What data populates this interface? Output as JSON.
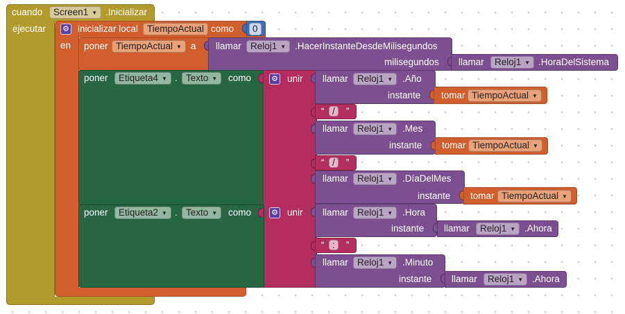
{
  "event": {
    "when": "cuando",
    "component": "Screen1",
    "event_name": ".Inicializar",
    "do": "ejecutar"
  },
  "local": {
    "label": "inicializar local",
    "var_name": "TiempoActual",
    "as": "como",
    "value": "0",
    "in": "en"
  },
  "set_var": {
    "label": "poner",
    "var": "TiempoActual",
    "to": "a"
  },
  "make_instant": {
    "call": "llamar",
    "component": "Reloj1",
    "method": ".HacerInstanteDesdeMilisegundos",
    "param": "milisegundos"
  },
  "system_time": {
    "call": "llamar",
    "component": "Reloj1",
    "method": ".HoraDelSistema"
  },
  "set_label4": {
    "label": "poner",
    "component": "Etiqueta4",
    "dot": ".",
    "property": "Texto",
    "as": "como"
  },
  "join1": {
    "label": "unir"
  },
  "year": {
    "call": "llamar",
    "component": "Reloj1",
    "method": ".Año",
    "param": "instante"
  },
  "get": {
    "label": "tomar",
    "var": "TiempoActual"
  },
  "slash": "/",
  "month": {
    "call": "llamar",
    "component": "Reloj1",
    "method": ".Mes",
    "param": "instante"
  },
  "day": {
    "call": "llamar",
    "component": "Reloj1",
    "method": ".DíaDelMes",
    "param": "instante"
  },
  "set_label2": {
    "label": "poner",
    "component": "Etiqueta2",
    "dot": ".",
    "property": "Texto",
    "as": "como"
  },
  "join2": {
    "label": "unir"
  },
  "hour": {
    "call": "llamar",
    "component": "Reloj1",
    "method": ".Hora",
    "param": "instante"
  },
  "now": {
    "call": "llamar",
    "component": "Reloj1",
    "method": ".Ahora"
  },
  "colon": ":",
  "minute": {
    "call": "llamar",
    "component": "Reloj1",
    "method": ".Minuto",
    "param": "instante"
  },
  "colors": {
    "control": "#b39a2c",
    "variable": "#d05f2d",
    "component": "#7b4f90",
    "setter": "#266643",
    "text": "#b32d5e",
    "math": "#3f70b5"
  }
}
